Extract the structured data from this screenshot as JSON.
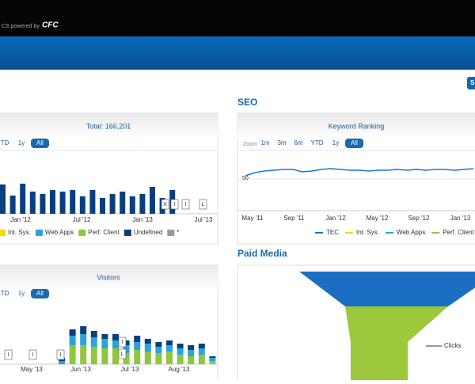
{
  "header": {
    "tagline": "CS powered by",
    "logo": "CFC"
  },
  "top_button": "S",
  "traffic": {
    "title": "Total: 166,201",
    "range_buttons": [
      "TD",
      "1y",
      "All"
    ],
    "values": [
      37,
      23,
      38,
      28,
      25,
      30,
      28,
      30,
      22,
      30,
      20,
      25,
      28,
      22,
      25,
      34,
      20,
      30
    ],
    "color": "#0a3f7e",
    "x_labels": [
      "Jan '12",
      "Jul '12",
      "Jan '13",
      "Jul '13"
    ],
    "flags": [
      "X",
      "I",
      "I",
      "L"
    ],
    "legend": [
      {
        "name": "Int. Sys.",
        "color": "#f5d800"
      },
      {
        "name": "Web Apps",
        "color": "#29a3dc"
      },
      {
        "name": "Perf. Client",
        "color": "#8fc63d"
      },
      {
        "name": "Undefined",
        "color": "#0a3f7e"
      },
      {
        "name": "*",
        "color": "#999999"
      }
    ]
  },
  "seo": {
    "heading": "SEO",
    "title": "Keyword Ranking",
    "zoom_label": "Zoom",
    "range_buttons": [
      "1m",
      "3m",
      "6m",
      "YTD",
      "1y",
      "All"
    ],
    "yticks": [
      50
    ],
    "ylim": [
      30,
      70
    ],
    "values": [
      52,
      54,
      55,
      55.5,
      56,
      56,
      54.5,
      55,
      56,
      56.5,
      56,
      55.5,
      55.5,
      55,
      55.5,
      55.5,
      56,
      55.5,
      56,
      55.5,
      56,
      56,
      55.5,
      56,
      56.5
    ],
    "color": "#1b78c8",
    "x_labels": [
      "May '11",
      "Sep '11",
      "Jan '12",
      "May '12",
      "Sep '12",
      "Jan '13"
    ],
    "legend": [
      {
        "name": "TEC",
        "color": "#1b78c8"
      },
      {
        "name": "Int. Sys.",
        "color": "#f5d800"
      },
      {
        "name": "Web Apps",
        "color": "#29a3dc"
      },
      {
        "name": "Perf. Client",
        "color": "#8fc63d"
      }
    ]
  },
  "visitors": {
    "title": "Visitors",
    "range_buttons": [
      "TD",
      "1y",
      "All"
    ],
    "series": [
      {
        "color": "#8fc63d",
        "values": [
          0,
          24,
          24,
          22,
          20,
          20,
          14,
          18,
          16,
          14,
          16,
          12,
          10,
          12,
          4
        ]
      },
      {
        "color": "#29a3dc",
        "values": [
          4,
          12,
          14,
          12,
          12,
          10,
          10,
          10,
          10,
          8,
          8,
          8,
          8,
          8,
          4
        ]
      },
      {
        "color": "#0a3f7e",
        "values": [
          4,
          8,
          10,
          8,
          6,
          8,
          6,
          8,
          6,
          6,
          6,
          6,
          6,
          6,
          2
        ]
      }
    ],
    "x_labels": [
      "May '13",
      "Jun '13",
      "Jul '13",
      "Aug '13"
    ],
    "flags": [
      "I",
      "I",
      "I",
      "I",
      "L"
    ]
  },
  "paid_media": {
    "heading": "Paid Media",
    "label": "Clicks"
  }
}
